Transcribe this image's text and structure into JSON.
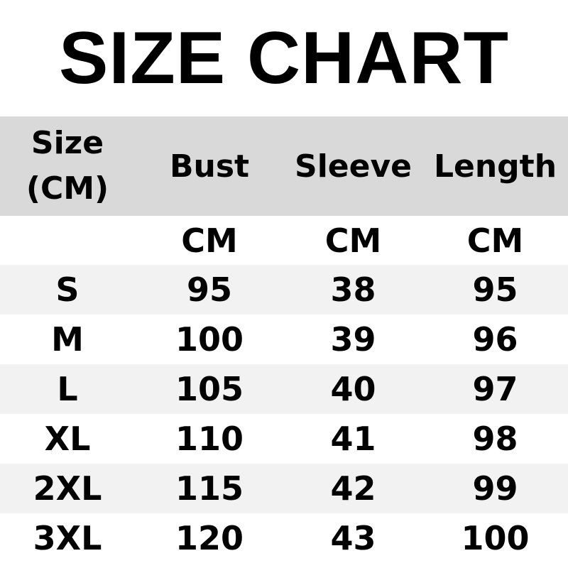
{
  "title": "SIZE CHART",
  "header": {
    "size_line1": "Size",
    "size_line2": "(CM)",
    "columns": [
      "Bust",
      "Sleeve",
      "Length"
    ]
  },
  "units": [
    "CM",
    "CM",
    "CM"
  ],
  "rows": [
    {
      "size": "S",
      "bust": "95",
      "sleeve": "38",
      "length": "95"
    },
    {
      "size": "M",
      "bust": "100",
      "sleeve": "39",
      "length": "96"
    },
    {
      "size": "L",
      "bust": "105",
      "sleeve": "40",
      "length": "97"
    },
    {
      "size": "XL",
      "bust": "110",
      "sleeve": "41",
      "length": "98"
    },
    {
      "size": "2XL",
      "bust": "115",
      "sleeve": "42",
      "length": "99"
    },
    {
      "size": "3XL",
      "bust": "120",
      "sleeve": "43",
      "length": "100"
    }
  ],
  "colors": {
    "header_bg": "#d9d9d9",
    "alt_row_bg": "#f2f2f2"
  }
}
